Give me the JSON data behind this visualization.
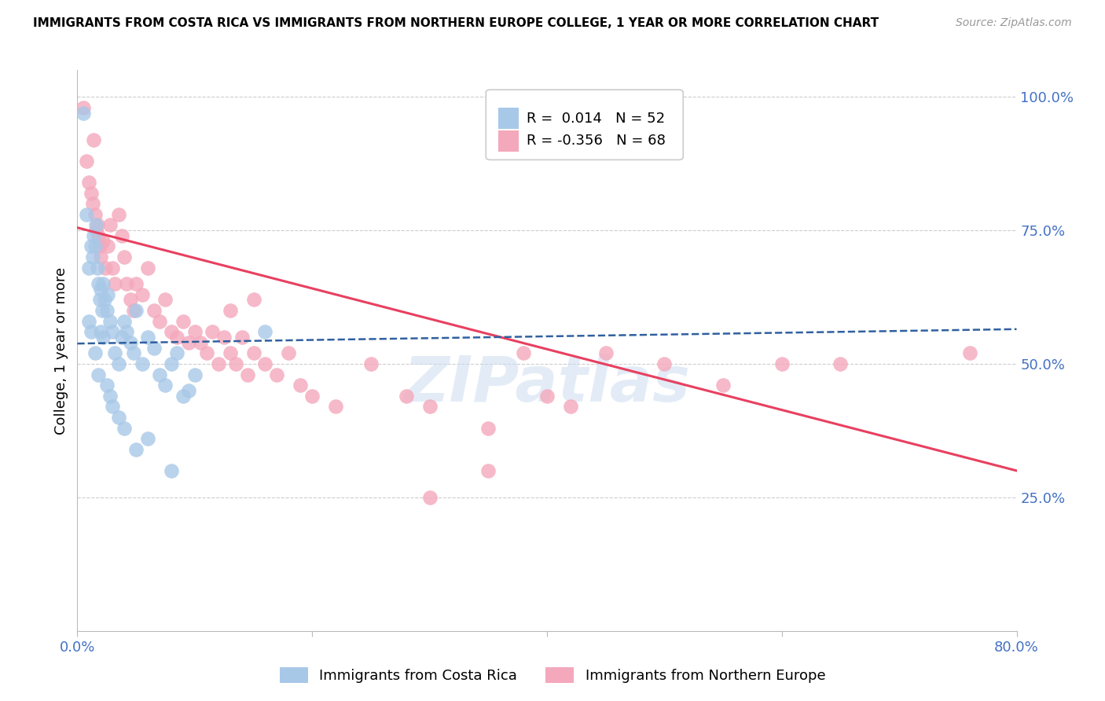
{
  "title": "IMMIGRANTS FROM COSTA RICA VS IMMIGRANTS FROM NORTHERN EUROPE COLLEGE, 1 YEAR OR MORE CORRELATION CHART",
  "source": "Source: ZipAtlas.com",
  "ylabel": "College, 1 year or more",
  "x_min": 0.0,
  "x_max": 0.8,
  "y_min": 0.0,
  "y_max": 1.05,
  "y_ticks": [
    0.25,
    0.5,
    0.75,
    1.0
  ],
  "y_tick_labels": [
    "25.0%",
    "50.0%",
    "75.0%",
    "100.0%"
  ],
  "x_ticks": [
    0.0,
    0.2,
    0.4,
    0.6,
    0.8
  ],
  "x_tick_labels": [
    "0.0%",
    "",
    "",
    "",
    "80.0%"
  ],
  "legend_blue_r": "0.014",
  "legend_blue_n": "52",
  "legend_pink_r": "-0.356",
  "legend_pink_n": "68",
  "blue_color": "#a8c8e8",
  "pink_color": "#f4a8bc",
  "blue_line_color": "#3060a0",
  "pink_line_color": "#e84060",
  "axis_label_color": "#4472c4",
  "grid_color": "#cccccc",
  "blue_scatter_x": [
    0.005,
    0.008,
    0.01,
    0.012,
    0.013,
    0.014,
    0.015,
    0.016,
    0.017,
    0.018,
    0.019,
    0.02,
    0.021,
    0.022,
    0.023,
    0.025,
    0.026,
    0.028,
    0.03,
    0.032,
    0.035,
    0.038,
    0.04,
    0.042,
    0.045,
    0.048,
    0.05,
    0.055,
    0.06,
    0.065,
    0.07,
    0.075,
    0.08,
    0.085,
    0.09,
    0.095,
    0.1,
    0.01,
    0.012,
    0.015,
    0.018,
    0.02,
    0.022,
    0.025,
    0.028,
    0.03,
    0.035,
    0.04,
    0.05,
    0.06,
    0.08,
    0.16
  ],
  "blue_scatter_y": [
    0.97,
    0.78,
    0.68,
    0.72,
    0.7,
    0.74,
    0.72,
    0.76,
    0.68,
    0.65,
    0.62,
    0.64,
    0.6,
    0.65,
    0.62,
    0.6,
    0.63,
    0.58,
    0.56,
    0.52,
    0.5,
    0.55,
    0.58,
    0.56,
    0.54,
    0.52,
    0.6,
    0.5,
    0.55,
    0.53,
    0.48,
    0.46,
    0.5,
    0.52,
    0.44,
    0.45,
    0.48,
    0.58,
    0.56,
    0.52,
    0.48,
    0.56,
    0.55,
    0.46,
    0.44,
    0.42,
    0.4,
    0.38,
    0.34,
    0.36,
    0.3,
    0.56
  ],
  "pink_scatter_x": [
    0.005,
    0.008,
    0.01,
    0.012,
    0.013,
    0.014,
    0.015,
    0.016,
    0.017,
    0.018,
    0.019,
    0.02,
    0.022,
    0.024,
    0.026,
    0.028,
    0.03,
    0.032,
    0.035,
    0.038,
    0.04,
    0.042,
    0.045,
    0.048,
    0.05,
    0.055,
    0.06,
    0.065,
    0.07,
    0.075,
    0.08,
    0.085,
    0.09,
    0.095,
    0.1,
    0.105,
    0.11,
    0.115,
    0.12,
    0.125,
    0.13,
    0.135,
    0.14,
    0.145,
    0.15,
    0.16,
    0.17,
    0.18,
    0.19,
    0.2,
    0.22,
    0.25,
    0.28,
    0.3,
    0.35,
    0.38,
    0.4,
    0.42,
    0.45,
    0.5,
    0.55,
    0.6,
    0.65,
    0.76,
    0.13,
    0.15,
    0.3,
    0.35
  ],
  "pink_scatter_y": [
    0.98,
    0.88,
    0.84,
    0.82,
    0.8,
    0.92,
    0.78,
    0.75,
    0.76,
    0.74,
    0.72,
    0.7,
    0.73,
    0.68,
    0.72,
    0.76,
    0.68,
    0.65,
    0.78,
    0.74,
    0.7,
    0.65,
    0.62,
    0.6,
    0.65,
    0.63,
    0.68,
    0.6,
    0.58,
    0.62,
    0.56,
    0.55,
    0.58,
    0.54,
    0.56,
    0.54,
    0.52,
    0.56,
    0.5,
    0.55,
    0.52,
    0.5,
    0.55,
    0.48,
    0.52,
    0.5,
    0.48,
    0.52,
    0.46,
    0.44,
    0.42,
    0.5,
    0.44,
    0.42,
    0.38,
    0.52,
    0.44,
    0.42,
    0.52,
    0.5,
    0.46,
    0.5,
    0.5,
    0.52,
    0.6,
    0.62,
    0.25,
    0.3
  ],
  "blue_line_x": [
    0.0,
    0.8
  ],
  "blue_line_y_start": 0.538,
  "blue_line_y_end": 0.565,
  "pink_line_x": [
    0.0,
    0.8
  ],
  "pink_line_y_start": 0.755,
  "pink_line_y_end": 0.3
}
